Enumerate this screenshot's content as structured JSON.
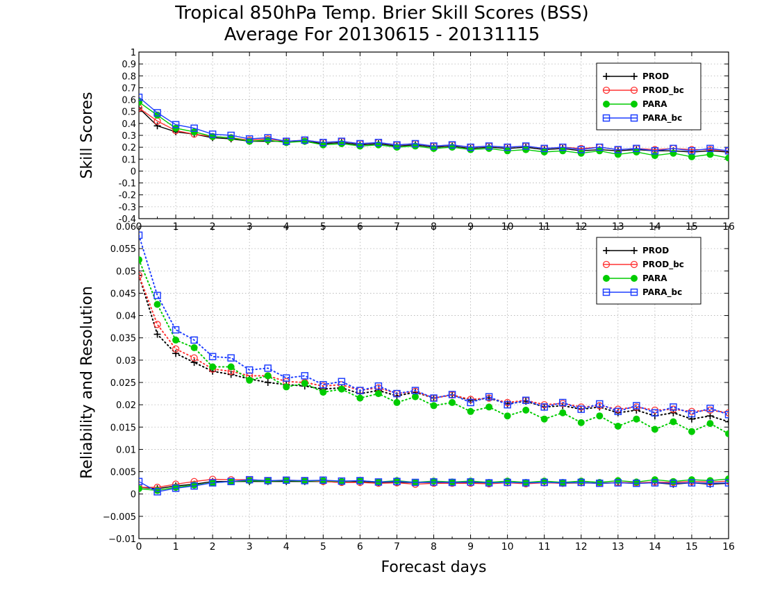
{
  "title_line1": "Tropical 850hPa Temp. Brier Skill Scores (BSS)",
  "title_line2": "Average For 20130615 - 20131115",
  "colors": {
    "PROD": "#000000",
    "PROD_bc": "#ff3333",
    "PARA": "#00cc00",
    "PARA_bc": "#1f3fff"
  },
  "chart_data": [
    {
      "type": "line",
      "ylabel": "Skill Scores",
      "xlim": [
        0,
        16
      ],
      "ylim": [
        -0.4,
        1
      ],
      "grid": true,
      "legend_position": "top-right",
      "x_ticks": [
        0,
        1,
        2,
        3,
        4,
        5,
        6,
        7,
        8,
        9,
        10,
        11,
        12,
        13,
        14,
        15,
        16
      ],
      "y_ticks": [
        -0.4,
        -0.3,
        -0.2,
        -0.1,
        0,
        0.1,
        0.2,
        0.3,
        0.4,
        0.5,
        0.6,
        0.7,
        0.8,
        0.9,
        1
      ],
      "x": [
        0,
        0.5,
        1,
        1.5,
        2,
        2.5,
        3,
        3.5,
        4,
        4.5,
        5,
        5.5,
        6,
        6.5,
        7,
        7.5,
        8,
        8.5,
        9,
        9.5,
        10,
        10.5,
        11,
        11.5,
        12,
        12.5,
        13,
        13.5,
        14,
        14.5,
        15,
        15.5,
        16
      ],
      "series": [
        {
          "name": "PROD",
          "marker": "plus",
          "values": [
            0.53,
            0.38,
            0.33,
            0.31,
            0.28,
            0.27,
            0.25,
            0.25,
            0.25,
            0.25,
            0.23,
            0.24,
            0.22,
            0.23,
            0.21,
            0.22,
            0.2,
            0.21,
            0.19,
            0.2,
            0.19,
            0.2,
            0.18,
            0.19,
            0.17,
            0.18,
            0.17,
            0.18,
            0.17,
            0.17,
            0.16,
            0.17,
            0.16
          ]
        },
        {
          "name": "PROD_bc",
          "marker": "open-circle",
          "values": [
            0.53,
            0.42,
            0.34,
            0.31,
            0.29,
            0.28,
            0.26,
            0.27,
            0.25,
            0.26,
            0.24,
            0.25,
            0.23,
            0.24,
            0.22,
            0.23,
            0.21,
            0.22,
            0.2,
            0.21,
            0.2,
            0.21,
            0.19,
            0.2,
            0.19,
            0.2,
            0.18,
            0.19,
            0.18,
            0.19,
            0.18,
            0.18,
            0.17
          ]
        },
        {
          "name": "PARA",
          "marker": "filled-circle",
          "values": [
            0.58,
            0.47,
            0.36,
            0.33,
            0.29,
            0.28,
            0.25,
            0.26,
            0.24,
            0.25,
            0.22,
            0.23,
            0.21,
            0.22,
            0.2,
            0.21,
            0.19,
            0.2,
            0.18,
            0.19,
            0.17,
            0.18,
            0.16,
            0.17,
            0.15,
            0.17,
            0.14,
            0.16,
            0.13,
            0.15,
            0.12,
            0.14,
            0.11
          ]
        },
        {
          "name": "PARA_bc",
          "marker": "open-square",
          "values": [
            0.62,
            0.49,
            0.39,
            0.36,
            0.31,
            0.3,
            0.27,
            0.28,
            0.25,
            0.26,
            0.24,
            0.25,
            0.23,
            0.24,
            0.22,
            0.23,
            0.21,
            0.22,
            0.2,
            0.21,
            0.2,
            0.21,
            0.19,
            0.2,
            0.18,
            0.2,
            0.18,
            0.19,
            0.17,
            0.19,
            0.17,
            0.19,
            0.17
          ]
        }
      ]
    },
    {
      "type": "line",
      "ylabel": "Reliability and Resolution",
      "xlabel": "Forecast days",
      "xlim": [
        0,
        16
      ],
      "ylim": [
        -0.01,
        0.06
      ],
      "grid": true,
      "legend_position": "top-right",
      "x_ticks": [
        0,
        1,
        2,
        3,
        4,
        5,
        6,
        7,
        8,
        9,
        10,
        11,
        12,
        13,
        14,
        15,
        16
      ],
      "y_ticks": [
        -0.01,
        -0.005,
        0,
        0.005,
        0.01,
        0.015,
        0.02,
        0.025,
        0.03,
        0.035,
        0.04,
        0.045,
        0.05,
        0.055,
        0.06
      ],
      "y_tick_labels": [
        "−0.01",
        "−0.005",
        "0",
        "0.005",
        "0.01",
        "0.015",
        "0.02",
        "0.025",
        "0.03",
        "0.035",
        "0.04",
        "0.045",
        "0.05",
        "0.055",
        "0.06"
      ],
      "x": [
        0,
        0.5,
        1,
        1.5,
        2,
        2.5,
        3,
        3.5,
        4,
        4.5,
        5,
        5.5,
        6,
        6.5,
        7,
        7.5,
        8,
        8.5,
        9,
        9.5,
        10,
        10.5,
        11,
        11.5,
        12,
        12.5,
        13,
        13.5,
        14,
        14.5,
        15,
        15.5,
        16
      ],
      "resolution_series": [
        {
          "name": "PROD",
          "marker": "plus",
          "values": [
            0.049,
            0.0358,
            0.0315,
            0.0295,
            0.0275,
            0.0268,
            0.0258,
            0.025,
            0.0245,
            0.0242,
            0.0235,
            0.0238,
            0.0225,
            0.0232,
            0.022,
            0.0228,
            0.0215,
            0.0222,
            0.021,
            0.0215,
            0.0202,
            0.0208,
            0.0195,
            0.0198,
            0.019,
            0.0195,
            0.0182,
            0.0188,
            0.0175,
            0.0182,
            0.0168,
            0.0175,
            0.0162
          ]
        },
        {
          "name": "PROD_bc",
          "marker": "open-circle",
          "values": [
            0.049,
            0.038,
            0.0325,
            0.0305,
            0.028,
            0.0275,
            0.0265,
            0.0265,
            0.0252,
            0.025,
            0.0242,
            0.0245,
            0.0232,
            0.0238,
            0.0225,
            0.023,
            0.0215,
            0.0222,
            0.0212,
            0.0215,
            0.0205,
            0.021,
            0.02,
            0.0203,
            0.0195,
            0.0198,
            0.019,
            0.0195,
            0.0188,
            0.019,
            0.0185,
            0.0188,
            0.0182
          ]
        },
        {
          "name": "PARA",
          "marker": "filled-circle",
          "values": [
            0.0525,
            0.0425,
            0.0345,
            0.0328,
            0.0285,
            0.0285,
            0.0255,
            0.0265,
            0.024,
            0.0248,
            0.0228,
            0.0235,
            0.0215,
            0.0225,
            0.0205,
            0.0218,
            0.0198,
            0.0205,
            0.0185,
            0.0195,
            0.0175,
            0.0188,
            0.0168,
            0.0182,
            0.016,
            0.0175,
            0.0152,
            0.0168,
            0.0145,
            0.0162,
            0.014,
            0.0158,
            0.0135
          ]
        },
        {
          "name": "PARA_bc",
          "marker": "open-square",
          "values": [
            0.058,
            0.0445,
            0.0368,
            0.0345,
            0.0308,
            0.0305,
            0.0278,
            0.0282,
            0.026,
            0.0265,
            0.0245,
            0.0252,
            0.0232,
            0.0242,
            0.0225,
            0.0232,
            0.0215,
            0.0223,
            0.0205,
            0.0218,
            0.02,
            0.021,
            0.0195,
            0.0205,
            0.019,
            0.0202,
            0.0185,
            0.0198,
            0.0182,
            0.0195,
            0.018,
            0.0192,
            0.0178
          ]
        }
      ],
      "reliability_series": [
        {
          "name": "PROD",
          "marker": "plus",
          "values": [
            0.0015,
            0.0012,
            0.0018,
            0.0022,
            0.0028,
            0.0028,
            0.0028,
            0.0028,
            0.0028,
            0.0028,
            0.0028,
            0.0026,
            0.0028,
            0.0026,
            0.0026,
            0.0026,
            0.0026,
            0.0025,
            0.0026,
            0.0024,
            0.0026,
            0.0024,
            0.0026,
            0.0024,
            0.0025,
            0.0024,
            0.0025,
            0.0024,
            0.0025,
            0.0022,
            0.0025,
            0.0022,
            0.0024
          ]
        },
        {
          "name": "PROD_bc",
          "marker": "open-circle",
          "values": [
            0.0015,
            0.0015,
            0.0022,
            0.0028,
            0.0033,
            0.0032,
            0.0032,
            0.003,
            0.0031,
            0.003,
            0.0028,
            0.0026,
            0.0026,
            0.0024,
            0.0025,
            0.0022,
            0.0024,
            0.0024,
            0.0024,
            0.0023,
            0.0025,
            0.0023,
            0.0025,
            0.0024,
            0.0026,
            0.0024,
            0.0026,
            0.0025,
            0.0027,
            0.0026,
            0.0028,
            0.0027,
            0.0029
          ]
        },
        {
          "name": "PARA",
          "marker": "filled-circle",
          "values": [
            0.0012,
            0.0008,
            0.0015,
            0.002,
            0.0025,
            0.0028,
            0.003,
            0.0029,
            0.003,
            0.0029,
            0.003,
            0.0028,
            0.003,
            0.0027,
            0.003,
            0.0026,
            0.0029,
            0.0027,
            0.0029,
            0.0026,
            0.0029,
            0.0026,
            0.0029,
            0.0026,
            0.0029,
            0.0026,
            0.003,
            0.0027,
            0.0032,
            0.0028,
            0.0032,
            0.003,
            0.0034
          ]
        },
        {
          "name": "PARA_bc",
          "marker": "open-square",
          "values": [
            0.0028,
            0.0005,
            0.0013,
            0.0018,
            0.0025,
            0.0028,
            0.0032,
            0.003,
            0.0031,
            0.003,
            0.0031,
            0.0029,
            0.003,
            0.0027,
            0.0028,
            0.0026,
            0.0027,
            0.0026,
            0.0027,
            0.0025,
            0.0026,
            0.0025,
            0.0026,
            0.0025,
            0.0026,
            0.0024,
            0.0025,
            0.0024,
            0.0025,
            0.0024,
            0.0025,
            0.0024,
            0.0025
          ]
        }
      ]
    }
  ]
}
